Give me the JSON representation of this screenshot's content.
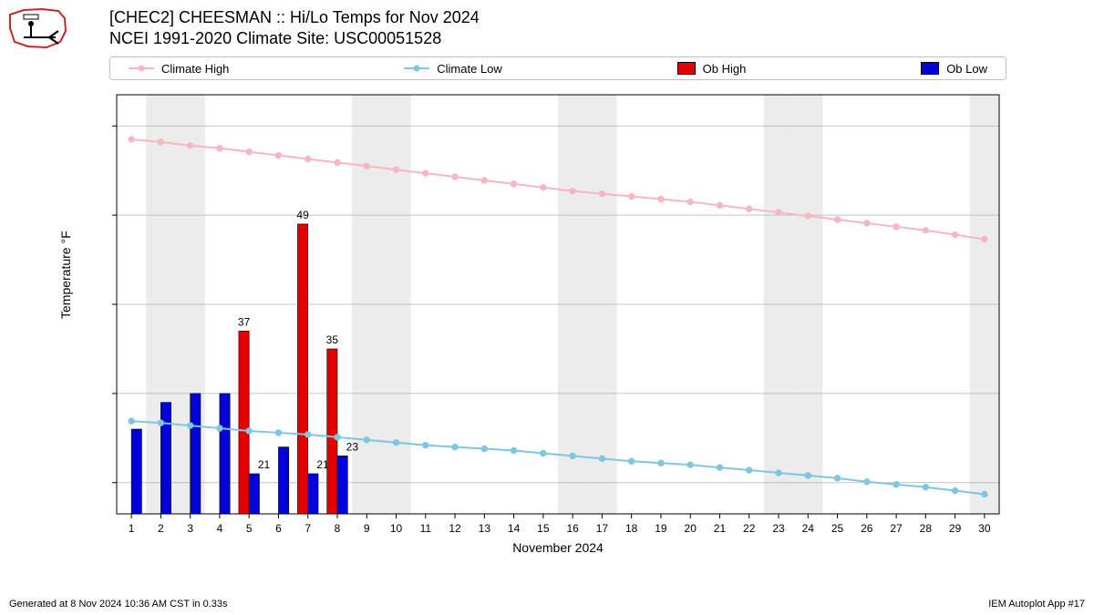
{
  "title_line1": "[CHEC2] CHEESMAN :: Hi/Lo Temps for Nov 2024",
  "title_line2": "NCEI 1991-2020 Climate Site: USC00051528",
  "legend": {
    "climate_high": "Climate High",
    "climate_low": "Climate Low",
    "ob_high": "Ob High",
    "ob_low": "Ob Low"
  },
  "colors": {
    "climate_high": "#f7b6c2",
    "climate_low": "#7fc6e0",
    "ob_high": "#e40000",
    "ob_low": "#0000d8",
    "grid": "#b0b0b0",
    "weekend_band": "#ececec",
    "axis": "#000000",
    "bg": "#ffffff"
  },
  "chart": {
    "type": "bar-with-lines",
    "x_days": [
      1,
      2,
      3,
      4,
      5,
      6,
      7,
      8,
      9,
      10,
      11,
      12,
      13,
      14,
      15,
      16,
      17,
      18,
      19,
      20,
      21,
      22,
      23,
      24,
      25,
      26,
      27,
      28,
      29,
      30
    ],
    "weekend_days": [
      2,
      3,
      9,
      10,
      16,
      17,
      23,
      24,
      30
    ],
    "y_ticks": [
      20,
      30,
      40,
      50,
      60
    ],
    "ylim": [
      16.5,
      63.5
    ],
    "xlabel": "November 2024",
    "ylabel": "Temperature °F",
    "climate_high": [
      58.5,
      58.2,
      57.8,
      57.5,
      57.1,
      56.7,
      56.3,
      55.9,
      55.5,
      55.1,
      54.7,
      54.3,
      53.9,
      53.5,
      53.1,
      52.7,
      52.4,
      52.1,
      51.8,
      51.5,
      51.1,
      50.7,
      50.3,
      49.9,
      49.5,
      49.1,
      48.7,
      48.3,
      47.8,
      47.3
    ],
    "climate_low": [
      26.9,
      26.7,
      26.4,
      26.1,
      25.8,
      25.6,
      25.4,
      25.1,
      24.8,
      24.5,
      24.2,
      24.0,
      23.8,
      23.6,
      23.3,
      23.0,
      22.7,
      22.4,
      22.2,
      22.0,
      21.7,
      21.4,
      21.1,
      20.8,
      20.5,
      20.1,
      19.8,
      19.5,
      19.1,
      18.7
    ],
    "ob_high": {
      "days": [
        5,
        7,
        8
      ],
      "values": [
        37,
        49,
        35
      ]
    },
    "ob_low": {
      "days": [
        1,
        2,
        3,
        4,
        5,
        6,
        7,
        8
      ],
      "values": [
        26,
        29,
        30,
        30,
        21,
        24,
        21,
        23
      ]
    },
    "bar_labels_high": {
      "5": "37",
      "7": "49",
      "8": "35"
    },
    "bar_labels_low": {
      "5": "21",
      "7": "21",
      "8": "23"
    },
    "bar_width": 0.35,
    "marker_radius": 3.2,
    "line_width": 2,
    "label_fontsize": 12,
    "tick_fontsize": 12,
    "title_fontsize": 18
  },
  "footer_left": "Generated at 8 Nov 2024 10:36 AM CST in 0.33s",
  "footer_right": "IEM Autoplot App #17"
}
